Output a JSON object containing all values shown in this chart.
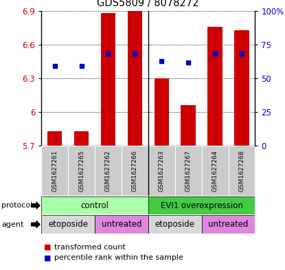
{
  "title": "GDS5809 / 8078272",
  "samples": [
    "GSM1627261",
    "GSM1627265",
    "GSM1627262",
    "GSM1627266",
    "GSM1627263",
    "GSM1627267",
    "GSM1627264",
    "GSM1627268"
  ],
  "bar_values": [
    5.83,
    5.83,
    6.88,
    6.9,
    6.3,
    6.06,
    6.76,
    6.73
  ],
  "bar_base": 5.7,
  "dot_values": [
    6.41,
    6.41,
    6.52,
    6.52,
    6.45,
    6.44,
    6.52,
    6.52
  ],
  "ylim_left": [
    5.7,
    6.9
  ],
  "ylim_right": [
    0,
    100
  ],
  "yticks_left": [
    5.7,
    6.0,
    6.3,
    6.6,
    6.9
  ],
  "ytick_labels_left": [
    "5.7",
    "6",
    "6.3",
    "6.6",
    "6.9"
  ],
  "yticks_right": [
    0,
    25,
    50,
    75,
    100
  ],
  "ytick_labels_right": [
    "0",
    "25",
    "50",
    "75",
    "100%"
  ],
  "bar_color": "#cc0000",
  "dot_color": "#0000cc",
  "plot_bg": "#ffffff",
  "protocol_color_control": "#aaffaa",
  "protocol_color_evi1": "#44cc44",
  "agent_color_etoposide": "#d8d8d8",
  "agent_color_untreated": "#dd88dd",
  "tick_label_color_left": "#cc0000",
  "tick_label_color_right": "#0000cc",
  "sample_bg": "#cccccc",
  "legend_red_label": "transformed count",
  "legend_blue_label": "percentile rank within the sample"
}
